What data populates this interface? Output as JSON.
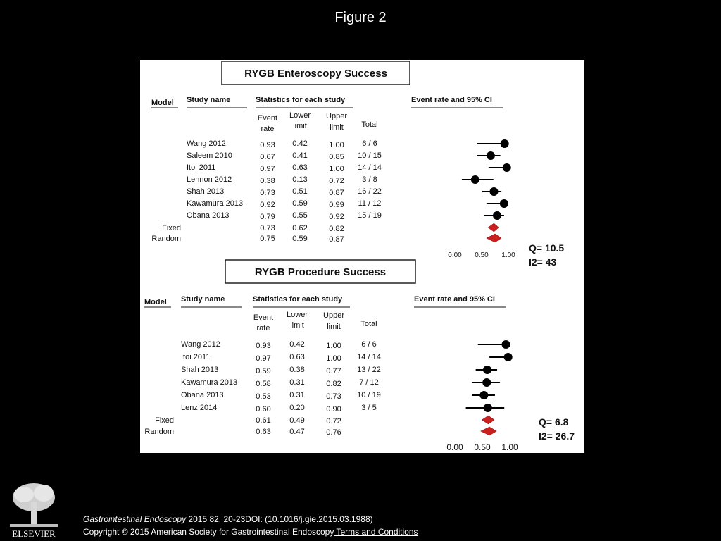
{
  "figure_title": "Figure 2",
  "chart_data": [
    {
      "type": "forest",
      "title": "RYGB Enteroscopy Success",
      "headers": {
        "model": "Model",
        "study": "Study name",
        "stats": "Statistics for each study",
        "plot": "Event rate and 95% CI",
        "event": [
          "Event",
          "rate"
        ],
        "lower": [
          "Lower",
          "limit"
        ],
        "upper": [
          "Upper",
          "limit"
        ],
        "total": "Total"
      },
      "studies": [
        {
          "name": "Wang 2012",
          "rate": "0.93",
          "lower": "0.42",
          "upper": "1.00",
          "total": "6 / 6"
        },
        {
          "name": "Saleem 2010",
          "rate": "0.67",
          "lower": "0.41",
          "upper": "0.85",
          "total": "10 / 15"
        },
        {
          "name": "Itoi 2011",
          "rate": "0.97",
          "lower": "0.63",
          "upper": "1.00",
          "total": "14 / 14"
        },
        {
          "name": "Lennon 2012",
          "rate": "0.38",
          "lower": "0.13",
          "upper": "0.72",
          "total": "3 / 8"
        },
        {
          "name": "Shah 2013",
          "rate": "0.73",
          "lower": "0.51",
          "upper": "0.87",
          "total": "16 / 22"
        },
        {
          "name": "Kawamura 2013",
          "rate": "0.92",
          "lower": "0.59",
          "upper": "0.99",
          "total": "11 / 12"
        },
        {
          "name": "Obana 2013",
          "rate": "0.79",
          "lower": "0.55",
          "upper": "0.92",
          "total": "15 / 19"
        }
      ],
      "summaries": [
        {
          "model": "Fixed",
          "rate": "0.73",
          "lower": "0.62",
          "upper": "0.82"
        },
        {
          "model": "Random",
          "rate": "0.75",
          "lower": "0.59",
          "upper": "0.87"
        }
      ],
      "x_ticks": [
        "0.00",
        "0.50",
        "1.00"
      ],
      "xlim": [
        0,
        1
      ],
      "q": "Q= 10.5",
      "i2": "I2= 43",
      "colors": {
        "point": "#000000",
        "diamond": "#cc1f1f"
      }
    },
    {
      "type": "forest",
      "title": "RYGB Procedure Success",
      "headers": {
        "model": "Model",
        "study": "Study name",
        "stats": "Statistics for each study",
        "plot": "Event rate and 95% CI",
        "event": [
          "Event",
          "rate"
        ],
        "lower": [
          "Lower",
          "limit"
        ],
        "upper": [
          "Upper",
          "limit"
        ],
        "total": "Total"
      },
      "studies": [
        {
          "name": "Wang 2012",
          "rate": "0.93",
          "lower": "0.42",
          "upper": "1.00",
          "total": "6 / 6"
        },
        {
          "name": "Itoi 2011",
          "rate": "0.97",
          "lower": "0.63",
          "upper": "1.00",
          "total": "14 / 14"
        },
        {
          "name": "Shah 2013",
          "rate": "0.59",
          "lower": "0.38",
          "upper": "0.77",
          "total": "13 / 22"
        },
        {
          "name": "Kawamura 2013",
          "rate": "0.58",
          "lower": "0.31",
          "upper": "0.82",
          "total": "7 / 12"
        },
        {
          "name": "Obana 2013",
          "rate": "0.53",
          "lower": "0.31",
          "upper": "0.73",
          "total": "10 / 19"
        },
        {
          "name": "Lenz 2014",
          "rate": "0.60",
          "lower": "0.20",
          "upper": "0.90",
          "total": "3 / 5"
        }
      ],
      "summaries": [
        {
          "model": "Fixed",
          "rate": "0.61",
          "lower": "0.49",
          "upper": "0.72"
        },
        {
          "model": "Random",
          "rate": "0.63",
          "lower": "0.47",
          "upper": "0.76"
        }
      ],
      "x_ticks": [
        "0.00",
        "0.50",
        "1.00"
      ],
      "xlim": [
        0,
        1
      ],
      "q": "Q= 6.8",
      "i2": "I2= 26.7",
      "colors": {
        "point": "#000000",
        "diamond": "#cc1f1f"
      }
    }
  ],
  "footer": {
    "publisher_logo_text": "ELSEVIER",
    "journal": "Gastrointestinal Endoscopy",
    "citation": " 2015 82, 20-23DOI: (10.1016/j.gie.2015.03.1988)",
    "copyright": "Copyright © 2015 American Society for Gastrointestinal Endoscopy",
    "terms_link": " Terms and Conditions"
  }
}
